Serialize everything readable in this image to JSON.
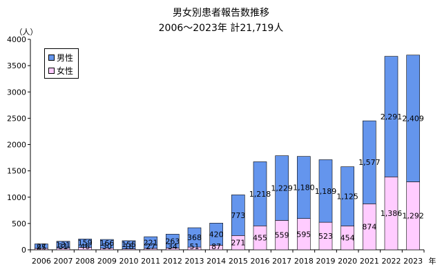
{
  "chart_data": {
    "type": "bar",
    "stacked": true,
    "title": "男女別患者報告数推移",
    "subtitle": "2006～2023年  計21,719人",
    "ylabel": "（人）",
    "xunit": "年",
    "ylim": [
      0,
      4000
    ],
    "yticks": [
      0,
      500,
      1000,
      1500,
      2000,
      2500,
      3000,
      3500,
      4000
    ],
    "categories": [
      "2006",
      "2007",
      "2008",
      "2009",
      "2010",
      "2011",
      "2012",
      "2013",
      "2014",
      "2015",
      "2016",
      "2017",
      "2018",
      "2019",
      "2020",
      "2021",
      "2022",
      "2023"
    ],
    "series": [
      {
        "name": "女性",
        "color": "#ffccff",
        "values": [
          27,
          31,
          46,
          30,
          18,
          27,
          34,
          51,
          87,
          271,
          455,
          559,
          595,
          523,
          454,
          874,
          1386,
          1292
        ],
        "labels": [
          "27",
          "31",
          "46",
          "30",
          "18",
          "27",
          "34",
          "51",
          "87",
          "271",
          "455",
          "559",
          "595",
          "523",
          "454",
          "874",
          "1,386",
          "1,292"
        ]
      },
      {
        "name": "男性",
        "color": "#6495ed",
        "values": [
          85,
          131,
          159,
          166,
          155,
          221,
          263,
          368,
          420,
          773,
          1218,
          1229,
          1180,
          1189,
          1125,
          1577,
          2291,
          2409
        ],
        "labels": [
          "85",
          "131",
          "159",
          "166",
          "155",
          "221",
          "263",
          "368",
          "420",
          "773",
          "1,218",
          "1,229",
          "1,180",
          "1,189",
          "1,125",
          "1,577",
          "2,291",
          "2,409"
        ]
      }
    ],
    "legend": {
      "placement": "top-left",
      "entries": [
        {
          "label": "男性",
          "color": "#6495ed"
        },
        {
          "label": "女性",
          "color": "#ffccff"
        }
      ]
    },
    "grid": false
  }
}
